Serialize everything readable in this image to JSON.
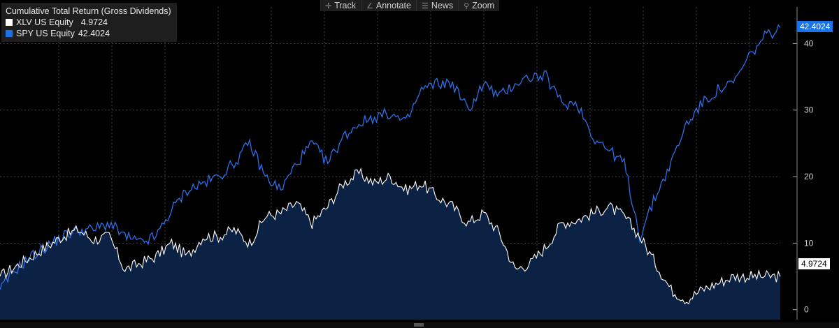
{
  "toolbar": {
    "track": {
      "label": "Track",
      "icon": "crosshair-icon"
    },
    "annotate": {
      "label": "Annotate",
      "icon": "pencil-icon"
    },
    "news": {
      "label": "News",
      "icon": "news-icon"
    },
    "zoom": {
      "label": "Zoom",
      "icon": "magnifier-icon"
    }
  },
  "colors": {
    "spy": "#2f6fe8",
    "xlv": "#ffffff",
    "xlv_fill": "#0c2244",
    "grid": "#444444",
    "tag_spy": "#1a73e8"
  },
  "chart_data": {
    "type": "area",
    "title": "Cumulative Total Return (Gross Dividends)",
    "ylim": [
      -1.5,
      45.5
    ],
    "yticks": [
      "0",
      "10",
      "20",
      "30",
      "40"
    ],
    "grid": true,
    "legend_position": "top-left",
    "series": [
      {
        "name": "XLV US Equity",
        "last_value": "4.9724",
        "legend_value": "4.9724",
        "x": [
          0,
          2,
          4,
          6,
          8,
          10,
          12,
          14,
          16,
          18,
          20,
          22,
          24,
          26,
          28,
          30,
          32,
          34,
          36,
          38,
          40,
          42,
          44,
          46,
          48,
          50,
          52,
          54,
          56,
          58,
          60,
          62,
          64,
          66,
          68,
          70,
          72,
          74,
          76,
          78,
          80,
          82,
          84,
          86,
          88,
          90,
          92,
          94,
          96,
          98,
          100
        ],
        "values": [
          5,
          6.5,
          8,
          9.5,
          11,
          12,
          10.5,
          11,
          6,
          7,
          8,
          10,
          8,
          11,
          11,
          12,
          10,
          14,
          14.5,
          16,
          13,
          15.5,
          19,
          20.5,
          19,
          20,
          18,
          19,
          17,
          15.5,
          13,
          14.5,
          11.5,
          6,
          7,
          9.5,
          13,
          13.5,
          14.5,
          15.5,
          14,
          11,
          7,
          3,
          1.5,
          3,
          4,
          5,
          5,
          5,
          4.97
        ]
      },
      {
        "name": "SPY US Equity",
        "last_value": "42.4024",
        "legend_value": "42.4024",
        "x": [
          0,
          2,
          4,
          6,
          8,
          10,
          12,
          14,
          16,
          18,
          20,
          22,
          24,
          26,
          28,
          30,
          32,
          34,
          36,
          38,
          40,
          42,
          44,
          46,
          48,
          50,
          52,
          54,
          56,
          58,
          60,
          62,
          64,
          66,
          68,
          70,
          72,
          74,
          76,
          78,
          80,
          82,
          84,
          86,
          88,
          90,
          92,
          94,
          96,
          98,
          100
        ],
        "values": [
          3,
          6,
          8,
          9.5,
          11,
          12,
          12,
          13,
          11,
          10,
          11,
          15,
          18,
          19,
          20,
          22,
          25,
          20,
          18,
          22,
          25,
          22,
          26,
          28,
          29,
          29.5,
          28,
          33,
          34,
          34,
          30,
          34,
          32,
          34,
          35,
          35,
          31,
          31,
          26,
          24,
          22,
          11,
          17,
          22,
          28,
          31,
          33,
          34,
          38,
          41,
          42.4
        ]
      }
    ]
  }
}
